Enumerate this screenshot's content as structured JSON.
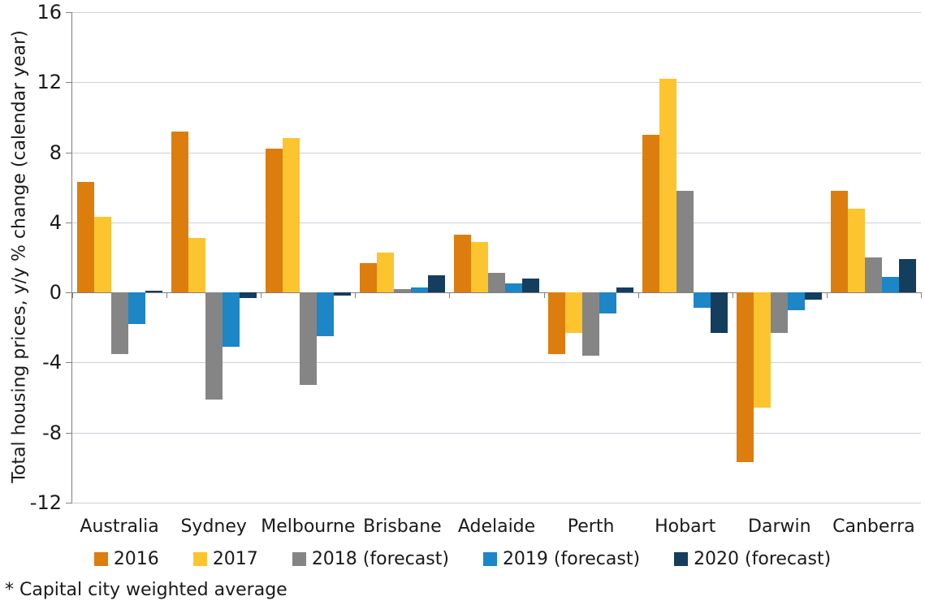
{
  "footnote": "* Capital city weighted average",
  "chart_data": {
    "type": "bar",
    "title": "",
    "ylabel": "Total housing prices, y/y % change (calendar year)",
    "xlabel": "",
    "ylim": [
      -12,
      16
    ],
    "yticks": [
      "16",
      "12",
      "8",
      "4",
      "0",
      "-4",
      "-8",
      "-12"
    ],
    "grid": true,
    "legend_position": "bottom",
    "axis_color": "#808080",
    "gridline_color": "#c9d1d9",
    "text_color": "#1a1a1a",
    "categories": [
      "Australia",
      "Sydney",
      "Melbourne",
      "Brisbane",
      "Adelaide",
      "Perth",
      "Hobart",
      "Darwin",
      "Canberra"
    ],
    "series": [
      {
        "name": "2016",
        "color": "#dd7d0e",
        "values": [
          6.3,
          9.2,
          8.2,
          1.7,
          3.3,
          -3.5,
          9.0,
          -9.7,
          5.8
        ]
      },
      {
        "name": "2017",
        "color": "#fcc42e",
        "values": [
          4.3,
          3.1,
          8.8,
          2.3,
          2.9,
          -2.3,
          12.2,
          -6.6,
          4.8
        ]
      },
      {
        "name": "2018 (forecast)",
        "color": "#858585",
        "values": [
          -3.5,
          -6.1,
          -5.3,
          0.2,
          1.1,
          -3.6,
          5.8,
          -2.3,
          2.0
        ]
      },
      {
        "name": "2019 (forecast)",
        "color": "#1c86c6",
        "values": [
          -1.8,
          -3.1,
          -2.5,
          0.3,
          0.5,
          -1.2,
          -0.9,
          -1.0,
          0.9
        ]
      },
      {
        "name": "2020 (forecast)",
        "color": "#143d5e",
        "values": [
          0.1,
          -0.3,
          -0.2,
          1.0,
          0.8,
          0.3,
          -2.3,
          -0.4,
          1.9
        ]
      }
    ]
  }
}
